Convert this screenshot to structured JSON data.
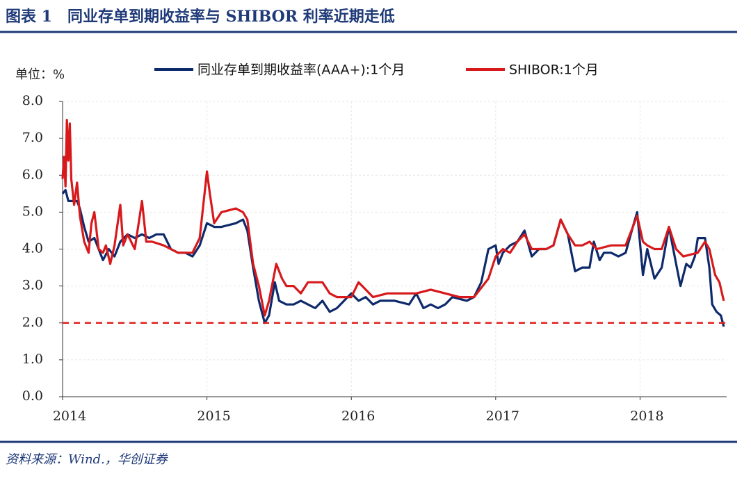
{
  "chart_data": {
    "type": "line",
    "title": "图表 1　同业存单到期收益率与 SHIBOR 利率近期走低",
    "y_unit": "单位：%",
    "source": "资料来源：Wind.，华创证券",
    "xlim": [
      2014,
      2018.6
    ],
    "xticks": [
      2014,
      2015,
      2016,
      2017,
      2018
    ],
    "ylim": [
      0,
      8
    ],
    "yticks": [
      {
        "value": 0,
        "label": "0.0"
      },
      {
        "value": 1,
        "label": "1.0"
      },
      {
        "value": 2,
        "label": "2.0"
      },
      {
        "value": 3,
        "label": "3.0"
      },
      {
        "value": 4,
        "label": "4.0"
      },
      {
        "value": 5,
        "label": "5.0"
      },
      {
        "value": 6,
        "label": "6.0"
      },
      {
        "value": 7,
        "label": "7.0"
      },
      {
        "value": 8,
        "label": "8.0"
      }
    ],
    "grid": true,
    "reference_line": {
      "value": 2.0,
      "color": "#e0201e"
    },
    "series": [
      {
        "name": "同业存单到期收益率(AAA+):1个月",
        "color": "#0e2a6b",
        "x": [
          2014.0,
          2014.02,
          2014.04,
          2014.1,
          2014.12,
          2014.15,
          2014.18,
          2014.22,
          2014.25,
          2014.28,
          2014.32,
          2014.36,
          2014.4,
          2014.45,
          2014.5,
          2014.55,
          2014.6,
          2014.65,
          2014.7,
          2014.75,
          2014.8,
          2014.85,
          2014.9,
          2014.95,
          2015.0,
          2015.05,
          2015.1,
          2015.2,
          2015.25,
          2015.28,
          2015.32,
          2015.36,
          2015.4,
          2015.43,
          2015.47,
          2015.5,
          2015.55,
          2015.6,
          2015.65,
          2015.7,
          2015.75,
          2015.8,
          2015.85,
          2015.9,
          2015.95,
          2016.0,
          2016.05,
          2016.1,
          2016.15,
          2016.2,
          2016.3,
          2016.4,
          2016.45,
          2016.5,
          2016.55,
          2016.6,
          2016.65,
          2016.7,
          2016.8,
          2016.85,
          2016.9,
          2016.95,
          2017.0,
          2017.02,
          2017.05,
          2017.1,
          2017.15,
          2017.2,
          2017.25,
          2017.3,
          2017.35,
          2017.4,
          2017.45,
          2017.5,
          2017.55,
          2017.6,
          2017.65,
          2017.68,
          2017.72,
          2017.75,
          2017.8,
          2017.85,
          2017.9,
          2017.95,
          2017.98,
          2018.02,
          2018.05,
          2018.1,
          2018.15,
          2018.2,
          2018.25,
          2018.28,
          2018.32,
          2018.35,
          2018.38,
          2018.4,
          2018.45,
          2018.48,
          2018.5,
          2018.53,
          2018.56,
          2018.58
        ],
        "values": [
          5.5,
          5.6,
          5.3,
          5.3,
          5.1,
          4.6,
          4.2,
          4.3,
          4.0,
          3.7,
          4.0,
          3.8,
          4.2,
          4.4,
          4.3,
          4.4,
          4.3,
          4.4,
          4.4,
          4.0,
          3.9,
          3.9,
          3.8,
          4.1,
          4.7,
          4.6,
          4.6,
          4.7,
          4.8,
          4.5,
          3.5,
          2.6,
          2.0,
          2.2,
          3.1,
          2.6,
          2.5,
          2.5,
          2.6,
          2.5,
          2.4,
          2.6,
          2.3,
          2.4,
          2.6,
          2.8,
          2.6,
          2.7,
          2.5,
          2.6,
          2.6,
          2.5,
          2.8,
          2.4,
          2.5,
          2.4,
          2.5,
          2.7,
          2.6,
          2.7,
          3.1,
          4.0,
          4.1,
          3.6,
          3.9,
          4.1,
          4.2,
          4.5,
          3.8,
          4.0,
          4.0,
          4.1,
          4.8,
          4.4,
          3.4,
          3.5,
          3.5,
          4.2,
          3.7,
          3.9,
          3.9,
          3.8,
          3.9,
          4.6,
          5.0,
          3.3,
          4.0,
          3.2,
          3.5,
          4.6,
          3.6,
          3.0,
          3.6,
          3.5,
          3.8,
          4.3,
          4.3,
          3.5,
          2.5,
          2.3,
          2.2,
          1.9
        ]
      },
      {
        "name": "SHIBOR:1个月",
        "color": "#d7191c",
        "x": [
          2014.0,
          2014.01,
          2014.02,
          2014.03,
          2014.04,
          2014.05,
          2014.06,
          2014.08,
          2014.1,
          2014.12,
          2014.15,
          2014.18,
          2014.2,
          2014.22,
          2014.25,
          2014.28,
          2014.3,
          2014.33,
          2014.36,
          2014.4,
          2014.42,
          2014.45,
          2014.5,
          2014.55,
          2014.58,
          2014.62,
          2014.7,
          2014.75,
          2014.8,
          2014.85,
          2014.9,
          2014.95,
          2015.0,
          2015.02,
          2015.05,
          2015.1,
          2015.2,
          2015.25,
          2015.28,
          2015.32,
          2015.36,
          2015.4,
          2015.43,
          2015.48,
          2015.52,
          2015.55,
          2015.6,
          2015.65,
          2015.7,
          2015.8,
          2015.85,
          2015.9,
          2016.0,
          2016.05,
          2016.1,
          2016.15,
          2016.25,
          2016.35,
          2016.45,
          2016.55,
          2016.65,
          2016.75,
          2016.85,
          2016.95,
          2017.0,
          2017.05,
          2017.1,
          2017.15,
          2017.2,
          2017.25,
          2017.35,
          2017.4,
          2017.45,
          2017.5,
          2017.55,
          2017.6,
          2017.65,
          2017.7,
          2017.8,
          2017.9,
          2017.95,
          2017.98,
          2018.02,
          2018.05,
          2018.1,
          2018.15,
          2018.2,
          2018.25,
          2018.3,
          2018.4,
          2018.45,
          2018.48,
          2018.52,
          2018.55,
          2018.58
        ],
        "values": [
          5.9,
          6.5,
          5.7,
          7.5,
          6.4,
          7.4,
          5.9,
          5.2,
          5.8,
          4.9,
          4.2,
          3.9,
          4.7,
          5.0,
          4.0,
          3.9,
          4.1,
          3.6,
          4.1,
          5.2,
          4.1,
          4.4,
          4.0,
          5.3,
          4.2,
          4.2,
          4.1,
          4.0,
          3.9,
          3.9,
          3.9,
          4.3,
          6.1,
          5.5,
          4.7,
          5.0,
          5.1,
          5.0,
          4.8,
          3.6,
          3.0,
          2.2,
          2.6,
          3.6,
          3.2,
          3.0,
          3.0,
          2.8,
          3.1,
          3.1,
          2.8,
          2.7,
          2.7,
          3.1,
          2.9,
          2.7,
          2.8,
          2.8,
          2.8,
          2.9,
          2.8,
          2.7,
          2.7,
          3.2,
          3.8,
          4.0,
          3.9,
          4.2,
          4.4,
          4.0,
          4.0,
          4.1,
          4.8,
          4.4,
          4.1,
          4.1,
          4.2,
          4.0,
          4.1,
          4.1,
          4.6,
          4.9,
          4.2,
          4.1,
          4.0,
          4.0,
          4.6,
          4.0,
          3.8,
          3.9,
          4.2,
          4.0,
          3.3,
          3.1,
          2.6
        ]
      }
    ]
  }
}
